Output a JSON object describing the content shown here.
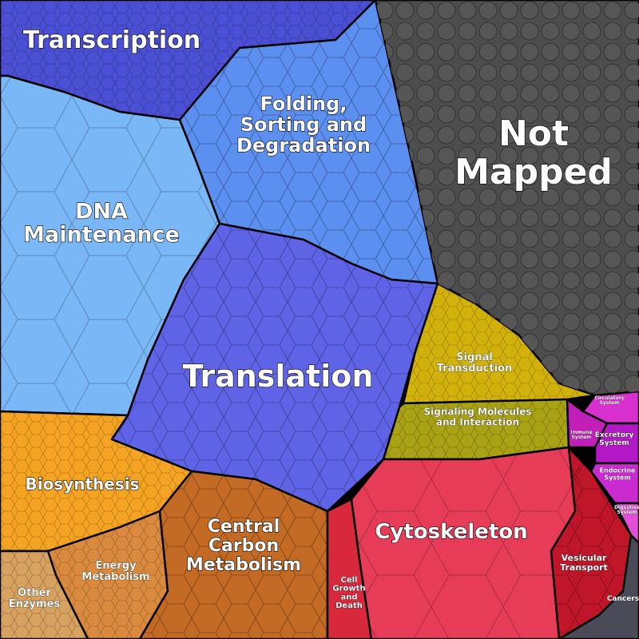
{
  "regions": [
    {
      "id": "transcription",
      "label": [
        "Transcription"
      ],
      "color": "#4a4fd4"
    },
    {
      "id": "dna-maintenance",
      "label": [
        "DNA",
        "Maintenance"
      ],
      "color": "#7ab7f6"
    },
    {
      "id": "folding",
      "label": [
        "Folding,",
        "Sorting and",
        "Degradation"
      ],
      "color": "#5b8ff0"
    },
    {
      "id": "not-mapped",
      "label": [
        "Not",
        "Mapped"
      ],
      "color": "#4d4d4d"
    },
    {
      "id": "translation",
      "label": [
        "Translation"
      ],
      "color": "#5f63e6"
    },
    {
      "id": "signal-transduction",
      "label": [
        "Signal",
        "Transduction"
      ],
      "color": "#d2b10a"
    },
    {
      "id": "signaling-molecules",
      "label": [
        "Signaling Molecules",
        "and Interaction"
      ],
      "color": "#a8a214"
    },
    {
      "id": "biosynthesis",
      "label": [
        "Biosynthesis"
      ],
      "color": "#f5a323"
    },
    {
      "id": "energy-metabolism",
      "label": [
        "Energy",
        "Metabolism"
      ],
      "color": "#d98a3e"
    },
    {
      "id": "other-enzymes",
      "label": [
        "Other",
        "Enzymes"
      ],
      "color": "#d7a160"
    },
    {
      "id": "central-carbon",
      "label": [
        "Central",
        "Carbon",
        "Metabolism"
      ],
      "color": "#c36a25"
    },
    {
      "id": "cytoskeleton",
      "label": [
        "Cytoskeleton"
      ],
      "color": "#e63c58"
    },
    {
      "id": "cell-growth",
      "label": [
        "Cell",
        "Growth",
        "and",
        "Death"
      ],
      "color": "#d8283c"
    },
    {
      "id": "vesicular-transport",
      "label": [
        "Vesicular",
        "Transport"
      ],
      "color": "#c0162a"
    },
    {
      "id": "circulatory-system",
      "label": [
        "Circulatory",
        "System"
      ],
      "color": "#d82fcf"
    },
    {
      "id": "immune-system",
      "label": [
        "Immune",
        "System"
      ],
      "color": "#c21fb8"
    },
    {
      "id": "excretory-system",
      "label": [
        "Excretory",
        "System"
      ],
      "color": "#b418c6"
    },
    {
      "id": "endocrine-system",
      "label": [
        "Endocrine",
        "System"
      ],
      "color": "#c92bd0"
    },
    {
      "id": "digestive-system",
      "label": [
        "Digestive",
        "System"
      ],
      "color": "#e04fd6"
    },
    {
      "id": "cancers",
      "label": [
        "Cancers"
      ],
      "color": "#4a4a58"
    }
  ]
}
